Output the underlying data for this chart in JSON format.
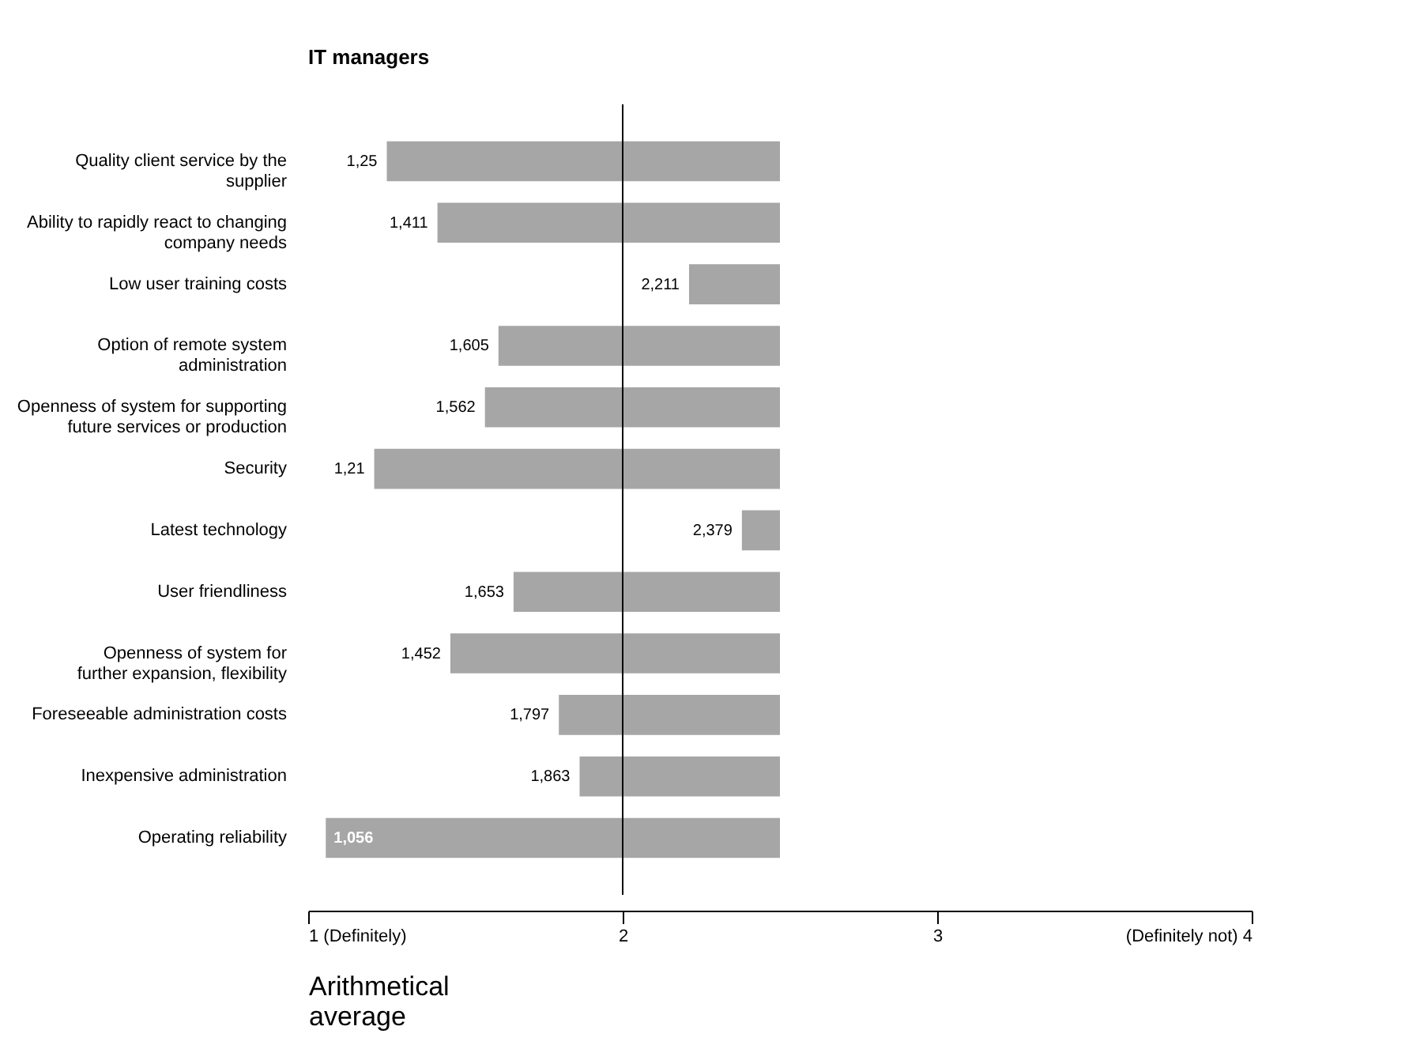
{
  "chart_data": {
    "type": "bar",
    "orientation": "horizontal",
    "title": "IT managers",
    "xlabel": "Arithmetical average",
    "categories": [
      "Quality client service by the\nsupplier",
      "Ability to rapidly react to changing\ncompany needs",
      "Low user training costs",
      "Option of remote system\nadministration",
      "Openness of system for supporting\nfuture services or production",
      "Security",
      "Latest technology",
      "User friendliness",
      "Openness of system for\nfurther expansion, flexibility",
      "Foreseeable administration costs",
      "Inexpensive administration",
      "Operating reliability"
    ],
    "base": [
      1.25,
      1.411,
      2.211,
      1.605,
      1.562,
      1.21,
      2.379,
      1.653,
      1.452,
      1.797,
      1.863,
      1.056
    ],
    "values": [
      1.25,
      1.089,
      0.289,
      0.895,
      0.938,
      1.29,
      0.121,
      0.847,
      1.048,
      0.703,
      0.637,
      1.444
    ],
    "annotations": [
      {
        "text": "1,25",
        "x": 1.25,
        "y": "Quality client service by the\nsupplier"
      },
      {
        "text": "1,411",
        "x": 1.411,
        "y": "Ability to rapidly react to changing\ncompany needs"
      },
      {
        "text": "2,211",
        "x": 2.211,
        "y": "Low user training costs"
      },
      {
        "text": "1,605",
        "x": 1.605,
        "y": "Option of remote system\nadministration"
      },
      {
        "text": "1,562",
        "x": 1.562,
        "y": "Openness of system for supporting\nfuture services or production"
      },
      {
        "text": "1,21",
        "x": 1.21,
        "y": "Security"
      },
      {
        "text": "2,379",
        "x": 2.379,
        "y": "Latest technology"
      },
      {
        "text": "1,653",
        "x": 1.653,
        "y": "User friendliness"
      },
      {
        "text": "1,452",
        "x": 1.452,
        "y": "Openness of system for\nfurther expansion, flexibility"
      },
      {
        "text": "1,797",
        "x": 1.797,
        "y": "Foreseeable administration costs"
      },
      {
        "text": "1,863",
        "x": 1.863,
        "y": "Inexpensive administration"
      },
      {
        "text": "1,056",
        "x": 1.056,
        "y": "Operating reliability"
      }
    ],
    "color": "#a6a6a6",
    "xlim": [
      1,
      4
    ],
    "xticks": [
      {
        "value": 1,
        "label": "1 (Definitely)"
      },
      2,
      3,
      {
        "value": 4,
        "label": "(Definitely not) 4"
      }
    ],
    "ref_lines": [
      {
        "axis": "x",
        "value": 2,
        "color": "#000000"
      }
    ],
    "grid": false
  }
}
